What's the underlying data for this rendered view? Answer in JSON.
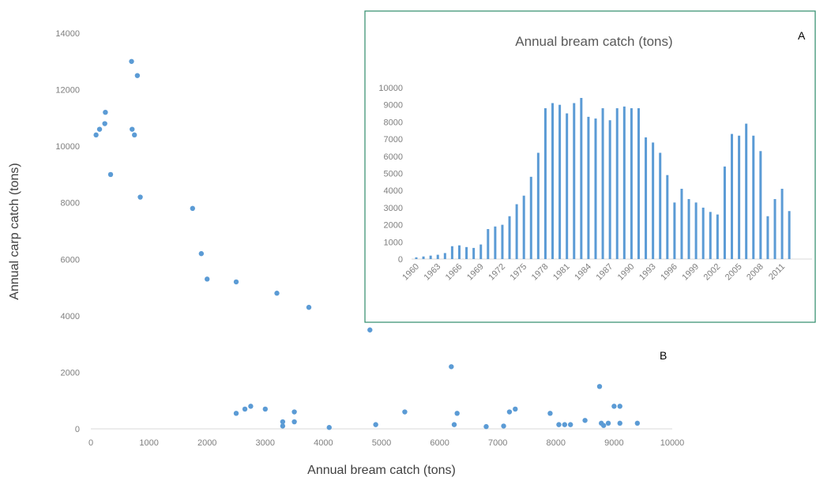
{
  "chart_data": [
    {
      "type": "scatter",
      "panel_label": "B",
      "title": "",
      "xlabel": "Annual bream catch (tons)",
      "ylabel": "Annual carp catch (tons)",
      "xlim": [
        0,
        10000
      ],
      "ylim": [
        0,
        14000
      ],
      "xticks": [
        "0",
        "1000",
        "2000",
        "3000",
        "4000",
        "5000",
        "6000",
        "7000",
        "8000",
        "9000",
        "10000"
      ],
      "yticks": [
        "0",
        "2000",
        "4000",
        "6000",
        "8000",
        "10000",
        "12000",
        "14000"
      ],
      "grid": false,
      "color": "#5b9bd5",
      "points": [
        [
          90,
          10400
        ],
        [
          150,
          10600
        ],
        [
          240,
          10800
        ],
        [
          250,
          11200
        ],
        [
          340,
          9000
        ],
        [
          700,
          13000
        ],
        [
          710,
          10600
        ],
        [
          750,
          10400
        ],
        [
          800,
          12500
        ],
        [
          850,
          8200
        ],
        [
          1750,
          7800
        ],
        [
          1900,
          6200
        ],
        [
          2000,
          5300
        ],
        [
          2500,
          5200
        ],
        [
          2500,
          550
        ],
        [
          2650,
          700
        ],
        [
          2750,
          800
        ],
        [
          3000,
          700
        ],
        [
          3200,
          4800
        ],
        [
          3300,
          250
        ],
        [
          3300,
          100
        ],
        [
          3500,
          600
        ],
        [
          3500,
          250
        ],
        [
          3750,
          4300
        ],
        [
          4100,
          50
        ],
        [
          4800,
          3500
        ],
        [
          4900,
          150
        ],
        [
          5400,
          600
        ],
        [
          6200,
          2200
        ],
        [
          6250,
          150
        ],
        [
          6300,
          550
        ],
        [
          6800,
          80
        ],
        [
          7100,
          100
        ],
        [
          7200,
          600
        ],
        [
          7300,
          700
        ],
        [
          7900,
          550
        ],
        [
          8050,
          150
        ],
        [
          8150,
          150
        ],
        [
          8250,
          150
        ],
        [
          8500,
          300
        ],
        [
          8750,
          1500
        ],
        [
          8780,
          200
        ],
        [
          8820,
          120
        ],
        [
          8900,
          200
        ],
        [
          9000,
          800
        ],
        [
          9100,
          800
        ],
        [
          9100,
          200
        ],
        [
          9400,
          200
        ]
      ]
    },
    {
      "type": "bar",
      "panel_label": "A",
      "title": "Annual bream catch (tons)",
      "ylim": [
        0,
        10000
      ],
      "yticks": [
        "0",
        "1000",
        "2000",
        "3000",
        "4000",
        "5000",
        "6000",
        "7000",
        "8000",
        "9000",
        "10000"
      ],
      "xtick_labels": [
        "1960",
        "1963",
        "1966",
        "1969",
        "1972",
        "1975",
        "1978",
        "1981",
        "1984",
        "1987",
        "1990",
        "1993",
        "1996",
        "1999",
        "2002",
        "2005",
        "2008",
        "2011"
      ],
      "grid": false,
      "color": "#5b9bd5",
      "border_color": "#2e8b6a",
      "categories": [
        1960,
        1961,
        1962,
        1963,
        1964,
        1965,
        1966,
        1967,
        1968,
        1969,
        1970,
        1971,
        1972,
        1973,
        1974,
        1975,
        1976,
        1977,
        1978,
        1979,
        1980,
        1981,
        1982,
        1983,
        1984,
        1985,
        1986,
        1987,
        1988,
        1989,
        1990,
        1991,
        1992,
        1993,
        1994,
        1995,
        1996,
        1997,
        1998,
        1999,
        2000,
        2001,
        2002,
        2003,
        2004,
        2005,
        2006,
        2007,
        2008,
        2009,
        2010,
        2011,
        2012
      ],
      "values": [
        100,
        150,
        200,
        250,
        350,
        750,
        800,
        700,
        650,
        850,
        1750,
        1900,
        2000,
        2500,
        3200,
        3700,
        4800,
        6200,
        8800,
        9100,
        9000,
        8500,
        9100,
        9400,
        8300,
        8200,
        8800,
        8100,
        8800,
        8900,
        8800,
        8800,
        7100,
        6800,
        6200,
        4900,
        3300,
        4100,
        3500,
        3300,
        3000,
        2750,
        2600,
        5400,
        7300,
        7200,
        7900,
        7200,
        6300,
        2500,
        3500,
        4100,
        2800
      ]
    }
  ]
}
